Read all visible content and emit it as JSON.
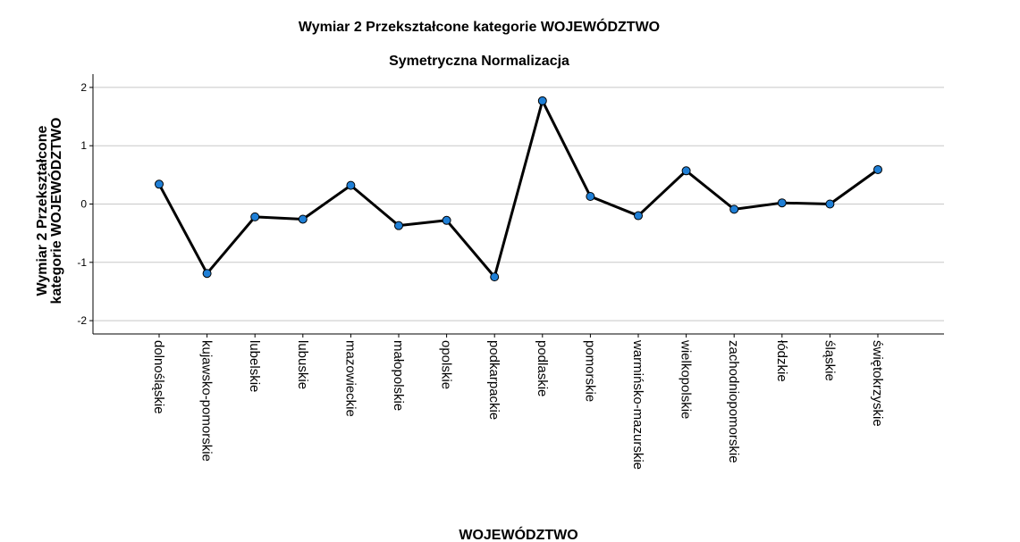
{
  "chart_data": {
    "type": "line",
    "title": "Wymiar 2 Przekształcone kategorie WOJEWÓDZTWO",
    "subtitle": "Symetryczna Normalizacja",
    "xlabel": "WOJEWÓDZTWO",
    "ylabel_lines": [
      "Wymiar 2 Przekształcone",
      "kategorie WOJEWÓDZTWO"
    ],
    "ylim": [
      -2.2,
      2.2
    ],
    "yticks": [
      -2,
      -1,
      0,
      1,
      2
    ],
    "grid": true,
    "categories": [
      "dolnośląskie",
      "kujawsko-pomorskie",
      "lubelskie",
      "lubuskie",
      "mazowieckie",
      "małopolskie",
      "opolskie",
      "podkarpackie",
      "podlaskie",
      "pomorskie",
      "warmińsko-mazurskie",
      "wielkopolskie",
      "zachodniopomorskie",
      "łódzkie",
      "śląskie",
      "świętokrzyskie"
    ],
    "series": [
      {
        "values": [
          0.34,
          -1.19,
          -0.22,
          -0.26,
          0.32,
          -0.37,
          -0.28,
          -1.25,
          1.77,
          0.13,
          -0.2,
          0.57,
          -0.09,
          0.02,
          0.0,
          0.59
        ],
        "line_color": "#000000",
        "marker_color": "#1f7fd6"
      }
    ]
  }
}
